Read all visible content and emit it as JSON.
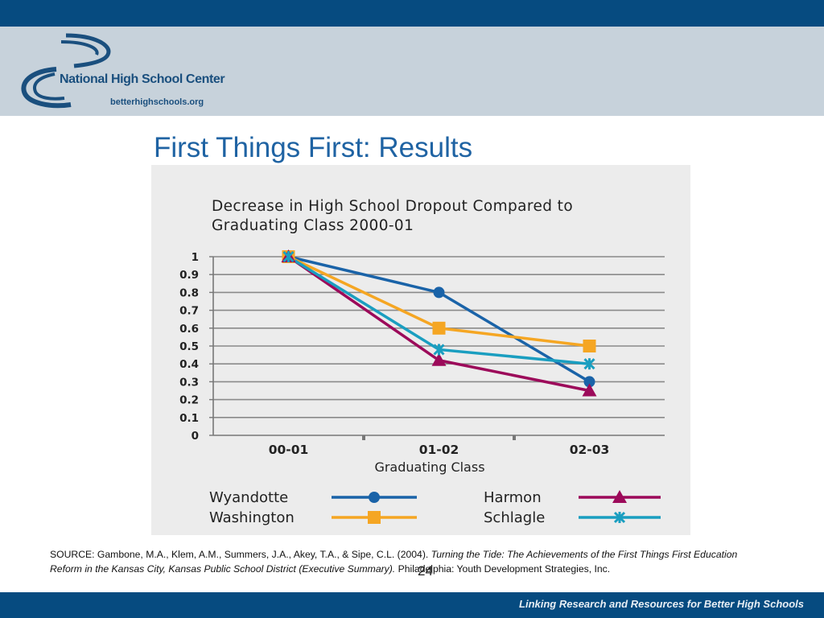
{
  "header": {
    "logo_name": "National High School Center",
    "logo_url": "betterhighschools.org"
  },
  "slide": {
    "title": "First Things First: Results",
    "source_prefix": "SOURCE: Gambone, M.A., Klem, A.M., Summers, J.A., Akey, T.A., & Sipe, C.L. (2004). ",
    "source_italic": "Turning the Tide: The Achievements of the First Things First Education Reform in the Kansas City, Kansas Public School District (Executive Summary).",
    "source_suffix": " Philadelphia: Youth Development Strategies, Inc.",
    "page_number": "24"
  },
  "footer": {
    "tagline": "Linking Research and Resources for Better High Schools"
  },
  "colors": {
    "brand_blue": "#064b80",
    "header_gray": "#c7d2db",
    "wyandotte": "#1a63a8",
    "washington": "#f5a623",
    "harmon": "#9c0a5a",
    "schlagle": "#1a9ec0"
  },
  "chart_data": {
    "type": "line",
    "title": "Decrease in High School Dropout Compared to Graduating Class 2000-01",
    "title_lines": [
      "Decrease in High School Dropout Compared to",
      "Graduating Class 2000-01"
    ],
    "xlabel": "Graduating Class",
    "ylabel": "",
    "categories": [
      "00-01",
      "01-02",
      "02-03"
    ],
    "ylim": [
      0,
      1
    ],
    "yticks": [
      "0",
      "0.1",
      "0.2",
      "0.3",
      "0.4",
      "0.5",
      "0.6",
      "0.7",
      "0.8",
      "0.9",
      "1"
    ],
    "grid": true,
    "legend_position": "bottom",
    "series": [
      {
        "name": "Wyandotte",
        "values": [
          1,
          0.8,
          0.3
        ],
        "color": "#1a63a8",
        "marker": "circle"
      },
      {
        "name": "Washington",
        "values": [
          1,
          0.6,
          0.5
        ],
        "color": "#f5a623",
        "marker": "square"
      },
      {
        "name": "Harmon",
        "values": [
          1,
          0.42,
          0.25
        ],
        "color": "#9c0a5a",
        "marker": "triangle"
      },
      {
        "name": "Schlagle",
        "values": [
          1,
          0.48,
          0.4
        ],
        "color": "#1a9ec0",
        "marker": "star"
      }
    ]
  }
}
